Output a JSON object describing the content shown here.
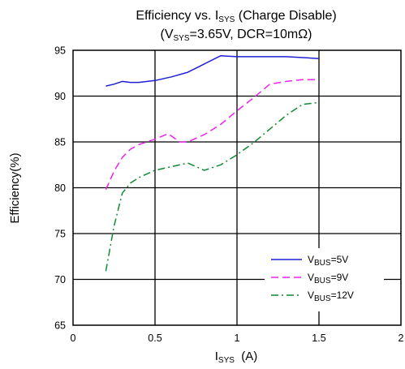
{
  "chart_data": {
    "type": "line",
    "title_line1": {
      "main": "Efficiency vs. I",
      "sub": "SYS",
      "tail": " (Charge Disable)"
    },
    "title_line2": {
      "open": "(V",
      "sub": "SYS",
      "tail": "=3.65V, DCR=10mΩ)"
    },
    "xlabel": {
      "main": "I",
      "sub": "SYS",
      "tail": "  (A)"
    },
    "ylabel": "Efficiency(%)",
    "xlim": [
      0,
      2
    ],
    "ylim": [
      65,
      95
    ],
    "xticks": [
      0,
      0.5,
      1,
      1.5,
      2
    ],
    "xtick_labels": [
      "0",
      "0.5",
      "1",
      "1.5",
      "2"
    ],
    "yticks": [
      65,
      70,
      75,
      80,
      85,
      90,
      95
    ],
    "ytick_labels": [
      "65",
      "70",
      "75",
      "80",
      "85",
      "90",
      "95"
    ],
    "grid": true,
    "legend_position": "bottom-right",
    "series": [
      {
        "name_main": "V",
        "name_sub": "BUS",
        "name_tail": "=5V",
        "color": "#1f1fd6",
        "dash": "solid",
        "points": [
          [
            0.2,
            91.1
          ],
          [
            0.25,
            91.3
          ],
          [
            0.3,
            91.6
          ],
          [
            0.35,
            91.5
          ],
          [
            0.4,
            91.5
          ],
          [
            0.5,
            91.7
          ],
          [
            0.6,
            92.1
          ],
          [
            0.7,
            92.6
          ],
          [
            0.8,
            93.5
          ],
          [
            0.9,
            94.4
          ],
          [
            1.0,
            94.3
          ],
          [
            1.1,
            94.3
          ],
          [
            1.2,
            94.3
          ],
          [
            1.3,
            94.3
          ],
          [
            1.4,
            94.2
          ],
          [
            1.5,
            94.1
          ]
        ]
      },
      {
        "name_main": "V",
        "name_sub": "BUS",
        "name_tail": "=9V",
        "color": "#ee22ee",
        "dash": "dashed",
        "points": [
          [
            0.2,
            79.8
          ],
          [
            0.25,
            81.8
          ],
          [
            0.3,
            83.3
          ],
          [
            0.35,
            84.2
          ],
          [
            0.4,
            84.7
          ],
          [
            0.5,
            85.3
          ],
          [
            0.58,
            85.9
          ],
          [
            0.65,
            85.0
          ],
          [
            0.7,
            85.0
          ],
          [
            0.8,
            85.8
          ],
          [
            0.9,
            86.9
          ],
          [
            1.0,
            88.4
          ],
          [
            1.1,
            89.8
          ],
          [
            1.2,
            91.3
          ],
          [
            1.3,
            91.6
          ],
          [
            1.4,
            91.8
          ],
          [
            1.5,
            91.8
          ]
        ]
      },
      {
        "name_main": "V",
        "name_sub": "BUS",
        "name_tail": "=12V",
        "color": "#118a35",
        "dash": "dashdot",
        "points": [
          [
            0.2,
            70.9
          ],
          [
            0.25,
            75.8
          ],
          [
            0.3,
            79.4
          ],
          [
            0.35,
            80.5
          ],
          [
            0.4,
            81.1
          ],
          [
            0.5,
            81.9
          ],
          [
            0.6,
            82.3
          ],
          [
            0.7,
            82.7
          ],
          [
            0.8,
            81.9
          ],
          [
            0.9,
            82.5
          ],
          [
            1.0,
            83.6
          ],
          [
            1.1,
            84.9
          ],
          [
            1.2,
            86.4
          ],
          [
            1.3,
            87.9
          ],
          [
            1.4,
            89.1
          ],
          [
            1.5,
            89.3
          ]
        ]
      }
    ]
  }
}
